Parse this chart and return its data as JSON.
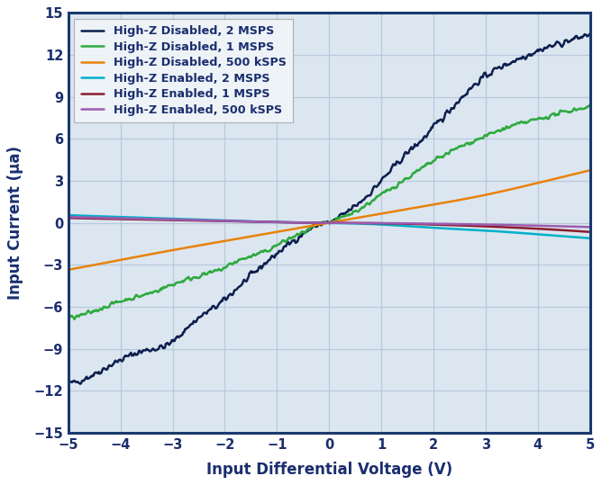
{
  "xlabel": "Input Differential Voltage (V)",
  "ylabel": "Input Current (μa)",
  "xlim": [
    -5,
    5
  ],
  "ylim": [
    -15,
    15
  ],
  "xticks": [
    -5,
    -4,
    -3,
    -2,
    -1,
    0,
    1,
    2,
    3,
    4,
    5
  ],
  "yticks": [
    -15,
    -12,
    -9,
    -6,
    -3,
    0,
    3,
    6,
    9,
    12,
    15
  ],
  "plot_bg_color": "#dce6f0",
  "fig_bg_color": "#ffffff",
  "grid_color": "#b8c8dc",
  "border_color": "#1a3a6e",
  "label_color": "#1a2e6e",
  "tick_color": "#1a2e6e",
  "series": [
    {
      "label": "High-Z Disabled, 2 MSPS",
      "color": "#0d1f4e",
      "linewidth": 1.8,
      "noise_amp": 0.18,
      "x_key_points": [
        -5,
        -4.5,
        -4.0,
        -3.5,
        -3.0,
        -2.8,
        -2.5,
        -2.0,
        -1.8,
        -1.5,
        -1.2,
        -1.0,
        -0.8,
        -0.5,
        -0.3,
        -0.1,
        0.0,
        0.2,
        0.5,
        0.8,
        1.0,
        1.2,
        1.5,
        1.8,
        2.0,
        2.3,
        2.5,
        3.0,
        3.5,
        4.0,
        4.5,
        5.0
      ],
      "y_key_points": [
        -11.5,
        -10.8,
        -9.8,
        -9.1,
        -8.5,
        -7.8,
        -6.8,
        -5.5,
        -4.8,
        -3.8,
        -2.8,
        -2.2,
        -1.6,
        -0.8,
        -0.3,
        -0.05,
        0.0,
        0.4,
        1.2,
        2.2,
        3.0,
        3.8,
        5.0,
        6.0,
        6.8,
        8.0,
        8.8,
        10.5,
        11.5,
        12.3,
        12.9,
        13.5
      ]
    },
    {
      "label": "High-Z Disabled, 1 MSPS",
      "color": "#2eaa3f",
      "linewidth": 1.8,
      "noise_amp": 0.12,
      "x_key_points": [
        -5,
        -4.5,
        -4.0,
        -3.5,
        -3.0,
        -2.5,
        -2.0,
        -1.8,
        -1.5,
        -1.2,
        -1.0,
        -0.8,
        -0.5,
        -0.3,
        -0.1,
        0.0,
        0.2,
        0.5,
        0.8,
        1.0,
        1.5,
        2.0,
        2.5,
        3.0,
        3.5,
        4.0,
        4.5,
        5.0
      ],
      "y_key_points": [
        -6.8,
        -6.3,
        -5.6,
        -5.1,
        -4.4,
        -3.8,
        -3.2,
        -2.8,
        -2.4,
        -2.0,
        -1.6,
        -1.2,
        -0.7,
        -0.3,
        -0.05,
        0.0,
        0.3,
        0.8,
        1.5,
        2.0,
        3.2,
        4.4,
        5.4,
        6.2,
        6.9,
        7.4,
        7.9,
        8.3
      ]
    },
    {
      "label": "High-Z Disabled, 500 kSPS",
      "color": "#e8820a",
      "linewidth": 1.8,
      "noise_amp": 0.0,
      "x_key_points": [
        -5,
        -4,
        -3,
        -2,
        -1,
        0,
        1,
        2,
        3,
        4,
        5
      ],
      "y_key_points": [
        -3.35,
        -2.65,
        -1.95,
        -1.3,
        -0.65,
        0.0,
        0.65,
        1.3,
        2.0,
        2.85,
        3.75
      ]
    },
    {
      "label": "High-Z Enabled, 2 MSPS",
      "color": "#00b0c8",
      "linewidth": 1.8,
      "noise_amp": 0.0,
      "x_key_points": [
        -5,
        -4,
        -3,
        -2,
        -1,
        0,
        1,
        2,
        3,
        4,
        5
      ],
      "y_key_points": [
        0.55,
        0.42,
        0.3,
        0.17,
        0.06,
        0.0,
        -0.12,
        -0.35,
        -0.55,
        -0.82,
        -1.1
      ]
    },
    {
      "label": "High-Z Enabled, 1 MSPS",
      "color": "#8b1c2e",
      "linewidth": 1.8,
      "noise_amp": 0.0,
      "x_key_points": [
        -5,
        -4,
        -3,
        -2,
        -1,
        0,
        1,
        2,
        3,
        4,
        5
      ],
      "y_key_points": [
        0.35,
        0.27,
        0.2,
        0.12,
        0.04,
        0.0,
        -0.03,
        -0.12,
        -0.25,
        -0.42,
        -0.65
      ]
    },
    {
      "label": "High-Z Enabled, 500 kSPS",
      "color": "#9b5cb0",
      "linewidth": 1.8,
      "noise_amp": 0.0,
      "x_key_points": [
        -5,
        -4,
        -3,
        -2,
        -1,
        0,
        1,
        2,
        3,
        4,
        5
      ],
      "y_key_points": [
        0.42,
        0.33,
        0.24,
        0.14,
        0.05,
        0.0,
        -0.02,
        -0.06,
        -0.12,
        -0.2,
        -0.3
      ]
    }
  ],
  "legend_loc": "upper left",
  "legend_fontsize": 9.2,
  "axis_label_fontsize": 12,
  "tick_fontsize": 10.5
}
